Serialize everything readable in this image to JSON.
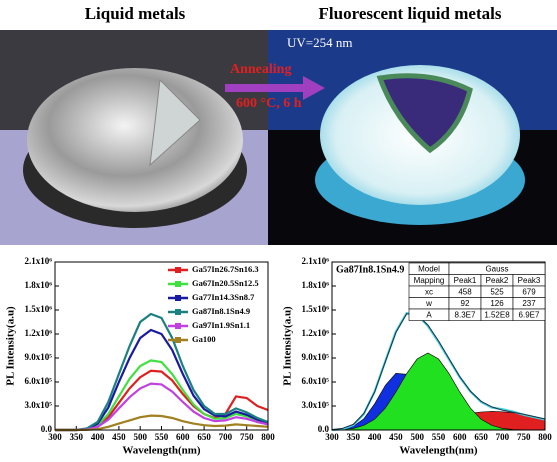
{
  "photos": {
    "left_title": "Liquid metals",
    "right_title": "Fluorescent liquid metals",
    "uv_label": "UV=254 nm",
    "arrow_top": "Annealing",
    "arrow_bottom": "600 °C, 6 h"
  },
  "chart_data": [
    {
      "type": "line",
      "xlabel": "Wavelength(nm)",
      "ylabel": "PL Intensity(a.u)",
      "x": [
        300,
        325,
        350,
        375,
        400,
        425,
        450,
        475,
        500,
        525,
        550,
        575,
        600,
        625,
        650,
        675,
        700,
        725,
        750,
        775,
        800
      ],
      "xlim": [
        300,
        800
      ],
      "xticks": [
        300,
        350,
        400,
        450,
        500,
        550,
        600,
        650,
        700,
        750,
        800
      ],
      "ylim": [
        0,
        2100000
      ],
      "yticks": [
        {
          "value": 0,
          "label": "0.0"
        },
        {
          "value": 300000,
          "label": "3.0x10⁵"
        },
        {
          "value": 600000,
          "label": "6.0x10⁵"
        },
        {
          "value": 900000,
          "label": "9.0x10⁵"
        },
        {
          "value": 1200000,
          "label": "1.2x10⁶"
        },
        {
          "value": 1500000,
          "label": "1.5x10⁶"
        },
        {
          "value": 1800000,
          "label": "1.8x10⁶"
        },
        {
          "value": 2100000,
          "label": "2.1x10⁶"
        }
      ],
      "legend": "upper right",
      "series": [
        {
          "name": "Ga57In26.7Sn16.3",
          "color": "#e02020",
          "values": [
            0,
            0,
            0,
            8000,
            50000,
            160000,
            340000,
            520000,
            660000,
            740000,
            730000,
            620000,
            450000,
            300000,
            200000,
            150000,
            200000,
            420000,
            400000,
            300000,
            250000
          ]
        },
        {
          "name": "Ga67In20.5Sn12.5",
          "color": "#40e040",
          "values": [
            0,
            0,
            0,
            10000,
            60000,
            200000,
            420000,
            640000,
            800000,
            870000,
            850000,
            700000,
            500000,
            320000,
            200000,
            140000,
            150000,
            200000,
            170000,
            120000,
            80000
          ]
        },
        {
          "name": "Ga77In14.3Sn8.7",
          "color": "#1a1aa0",
          "values": [
            0,
            0,
            0,
            15000,
            80000,
            280000,
            600000,
            900000,
            1150000,
            1250000,
            1200000,
            1000000,
            700000,
            430000,
            260000,
            180000,
            170000,
            230000,
            190000,
            130000,
            90000
          ]
        },
        {
          "name": "Ga87In8.1Sn4.9",
          "color": "#1a8080",
          "values": [
            0,
            0,
            0,
            20000,
            100000,
            350000,
            700000,
            1050000,
            1350000,
            1450000,
            1400000,
            1150000,
            800000,
            500000,
            300000,
            200000,
            200000,
            270000,
            220000,
            150000,
            100000
          ]
        },
        {
          "name": "Ga97In1.9Sn1.1",
          "color": "#c040e0",
          "values": [
            0,
            0,
            0,
            6000,
            40000,
            130000,
            270000,
            410000,
            520000,
            580000,
            570000,
            480000,
            350000,
            230000,
            150000,
            110000,
            120000,
            160000,
            140000,
            100000,
            70000
          ]
        },
        {
          "name": "Ga100",
          "color": "#a08020",
          "values": [
            0,
            0,
            0,
            2000,
            10000,
            40000,
            80000,
            120000,
            160000,
            180000,
            175000,
            150000,
            110000,
            80000,
            60000,
            50000,
            55000,
            70000,
            60000,
            50000,
            40000
          ]
        }
      ]
    },
    {
      "type": "line",
      "title": "Ga87In8.1Sn4.9",
      "xlabel": "Wavelength(nm)",
      "ylabel": "PL Intensity(a.u)",
      "x": [
        300,
        325,
        350,
        375,
        400,
        425,
        450,
        475,
        500,
        525,
        550,
        575,
        600,
        625,
        650,
        675,
        700,
        725,
        750,
        775,
        800
      ],
      "xlim": [
        300,
        800
      ],
      "xticks": [
        300,
        350,
        400,
        450,
        500,
        550,
        600,
        650,
        700,
        750,
        800
      ],
      "ylim": [
        0,
        2100000
      ],
      "yticks": [
        {
          "value": 0,
          "label": "0.0"
        },
        {
          "value": 300000,
          "label": "3.0x10⁵"
        },
        {
          "value": 600000,
          "label": "6.0x10⁵"
        },
        {
          "value": 900000,
          "label": "9.0x10⁵"
        },
        {
          "value": 1200000,
          "label": "1.2x10⁶"
        },
        {
          "value": 1500000,
          "label": "1.5x10⁶"
        },
        {
          "value": 1800000,
          "label": "1.8x10⁶"
        },
        {
          "value": 2100000,
          "label": "2.1x10⁶"
        }
      ],
      "table": {
        "rows": [
          [
            "Model",
            "Gauss"
          ],
          [
            "Mapping",
            "Peak1",
            "Peak2",
            "Peak3"
          ],
          [
            "xc",
            "458",
            "525",
            "679"
          ],
          [
            "w",
            "92",
            "126",
            "237"
          ],
          [
            "A",
            "8.3E7",
            "1.52E8",
            "6.9E7"
          ]
        ]
      },
      "series": [
        {
          "color": "#1030e0",
          "area": true,
          "values": [
            2000,
            11000,
            45000,
            141000,
            326000,
            557000,
            709000,
            696000,
            475000,
            249000,
            97000,
            28000,
            6000,
            1000,
            0,
            0,
            0,
            0,
            0,
            0,
            0
          ]
        },
        {
          "color": "#e02020",
          "area": true,
          "values": [
            1000,
            3000,
            5000,
            9000,
            15000,
            23000,
            36000,
            53000,
            74000,
            100000,
            128000,
            158000,
            186000,
            210000,
            225000,
            232000,
            228000,
            216000,
            194000,
            167000,
            138000
          ]
        },
        {
          "color": "#20e020",
          "area": true,
          "values": [
            2000,
            6000,
            20000,
            57000,
            134000,
            273000,
            474000,
            704000,
            889000,
            962000,
            889000,
            704000,
            474000,
            273000,
            134000,
            57000,
            20000,
            6000,
            2000,
            0,
            0
          ]
        },
        {
          "color": "#40d0e0",
          "area": false,
          "values": [
            0,
            10000,
            60000,
            200000,
            480000,
            860000,
            1230000,
            1460000,
            1440000,
            1300000,
            1100000,
            880000,
            660000,
            480000,
            350000,
            280000,
            260000,
            230000,
            190000,
            160000,
            130000
          ]
        },
        {
          "color": "#203040",
          "area": false,
          "values": [
            5000,
            20000,
            70000,
            207000,
            475000,
            853000,
            1219000,
            1453000,
            1438000,
            1311000,
            1114000,
            890000,
            666000,
            484000,
            359000,
            289000,
            248000,
            222000,
            196000,
            167000,
            138000
          ]
        }
      ]
    }
  ]
}
